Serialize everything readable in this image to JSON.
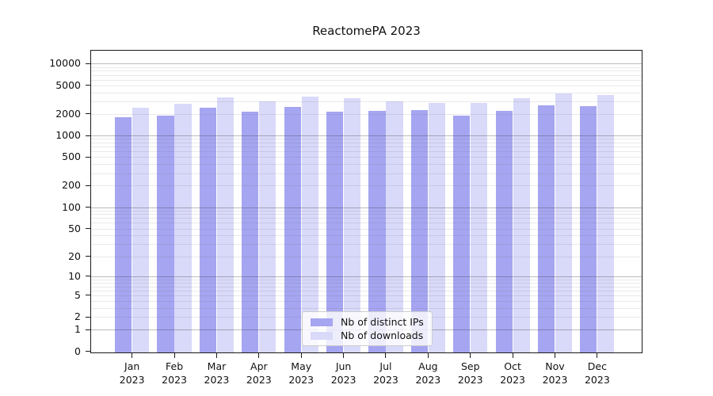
{
  "title": "ReactomePA 2023",
  "chart_data": {
    "type": "bar",
    "title": "ReactomePA 2023",
    "xlabel": "",
    "ylabel": "",
    "y_scale": "log(value+1)",
    "ylim": [
      0,
      15600
    ],
    "grid": true,
    "legend_position": "lower center",
    "year": "2023",
    "categories": [
      "Jan 2023",
      "Feb 2023",
      "Mar 2023",
      "Apr 2023",
      "May 2023",
      "Jun 2023",
      "Jul 2023",
      "Aug 2023",
      "Sep 2023",
      "Oct 2023",
      "Nov 2023",
      "Dec 2023"
    ],
    "months": [
      "Jan",
      "Feb",
      "Mar",
      "Apr",
      "May",
      "Jun",
      "Jul",
      "Aug",
      "Sep",
      "Oct",
      "Nov",
      "Dec"
    ],
    "y_ticks": [
      0,
      1,
      2,
      5,
      10,
      20,
      50,
      100,
      200,
      500,
      1000,
      2000,
      5000,
      10000
    ],
    "series": [
      {
        "name": "Nb of distinct IPs",
        "color": "#a5a5f1",
        "values": [
          1790,
          1920,
          2430,
          2140,
          2480,
          2160,
          2200,
          2240,
          1900,
          2220,
          2650,
          2560
        ]
      },
      {
        "name": "Nb of downloads",
        "color": "#d9d9f9",
        "values": [
          2430,
          2760,
          3360,
          3030,
          3510,
          3290,
          2960,
          2870,
          2840,
          3330,
          3840,
          3700
        ]
      }
    ],
    "colors": {
      "major_gridline": "#b5b5b5",
      "minor_gridline": "#e7e7e7",
      "axis": "#1a1a1a",
      "text": "#111111"
    }
  }
}
